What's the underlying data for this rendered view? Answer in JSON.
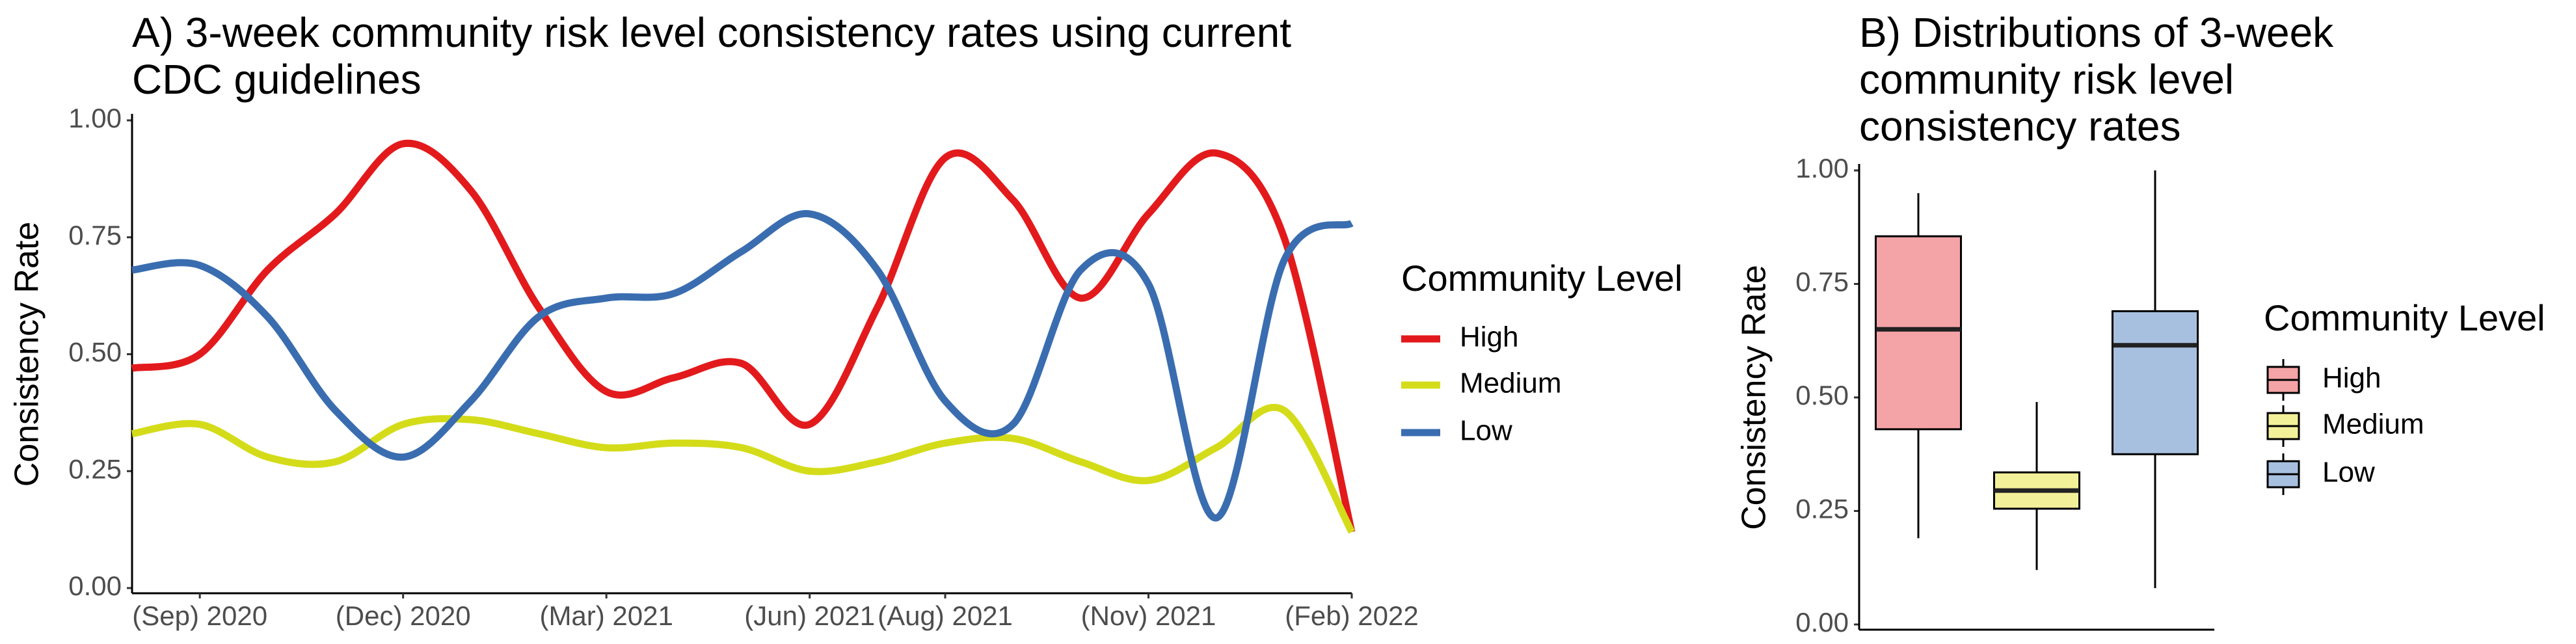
{
  "chart_data": [
    {
      "type": "line",
      "title": "A) 3-week community risk level consistency rates using current CDC guidelines",
      "y_label": "Consistency Rate",
      "legend_title": "Community Level",
      "x": [
        "2020-08",
        "2020-09",
        "2020-10",
        "2020-11",
        "2020-12",
        "2021-01",
        "2021-02",
        "2021-03",
        "2021-04",
        "2021-05",
        "2021-06",
        "2021-07",
        "2021-08",
        "2021-09",
        "2021-10",
        "2021-11",
        "2021-12",
        "2022-01",
        "2022-02"
      ],
      "xlim": [
        "2020-08",
        "2022-02"
      ],
      "xticks": [
        {
          "value": "2020-09",
          "label": "(Sep) 2020"
        },
        {
          "value": "2020-12",
          "label": "(Dec) 2020"
        },
        {
          "value": "2021-03",
          "label": "(Mar) 2021"
        },
        {
          "value": "2021-06",
          "label": "(Jun) 2021"
        },
        {
          "value": "2021-08",
          "label": "(Aug) 2021"
        },
        {
          "value": "2021-11",
          "label": "(Nov) 2021"
        },
        {
          "value": "2022-02",
          "label": "(Feb) 2022"
        }
      ],
      "ylim": [
        0,
        1
      ],
      "yticks": [
        {
          "value": 0,
          "label": "0.00"
        },
        {
          "value": 0.25,
          "label": "0.25"
        },
        {
          "value": 0.5,
          "label": "0.50"
        },
        {
          "value": 0.75,
          "label": "0.75"
        },
        {
          "value": 1,
          "label": "1.00"
        }
      ],
      "series": [
        {
          "name": "High",
          "color": "#e31a1c",
          "values": [
            0.47,
            0.5,
            0.68,
            0.8,
            0.95,
            0.85,
            0.6,
            0.42,
            0.45,
            0.48,
            0.35,
            0.6,
            0.92,
            0.83,
            0.62,
            0.8,
            0.93,
            0.75,
            0.12
          ]
        },
        {
          "name": "Medium",
          "color": "#d4dc1a",
          "values": [
            0.33,
            0.35,
            0.28,
            0.27,
            0.35,
            0.36,
            0.33,
            0.3,
            0.31,
            0.3,
            0.25,
            0.27,
            0.31,
            0.32,
            0.27,
            0.23,
            0.3,
            0.38,
            0.12
          ]
        },
        {
          "name": "Low",
          "color": "#3a6db0",
          "values": [
            0.68,
            0.69,
            0.58,
            0.38,
            0.28,
            0.4,
            0.58,
            0.62,
            0.63,
            0.72,
            0.8,
            0.68,
            0.4,
            0.35,
            0.68,
            0.65,
            0.15,
            0.7,
            0.78
          ]
        }
      ]
    },
    {
      "type": "box",
      "title": "B) Distributions of 3-week community risk level consistency rates",
      "y_label": "Consistency Rate",
      "legend_title": "Community Level",
      "ylim": [
        0,
        1
      ],
      "yticks": [
        {
          "value": 0,
          "label": "0.00"
        },
        {
          "value": 0.25,
          "label": "0.25"
        },
        {
          "value": 0.5,
          "label": "0.50"
        },
        {
          "value": 0.75,
          "label": "0.75"
        },
        {
          "value": 1,
          "label": "1.00"
        }
      ],
      "series": [
        {
          "name": "High",
          "color": "#f4a3a7",
          "min": 0.19,
          "q1": 0.43,
          "median": 0.65,
          "q3": 0.855,
          "max": 0.95
        },
        {
          "name": "Medium",
          "color": "#f3f09a",
          "min": 0.12,
          "q1": 0.255,
          "median": 0.295,
          "q3": 0.335,
          "max": 0.49
        },
        {
          "name": "Low",
          "color": "#a8c0e0",
          "min": 0.08,
          "q1": 0.375,
          "median": 0.615,
          "q3": 0.69,
          "max": 1
        }
      ]
    }
  ]
}
